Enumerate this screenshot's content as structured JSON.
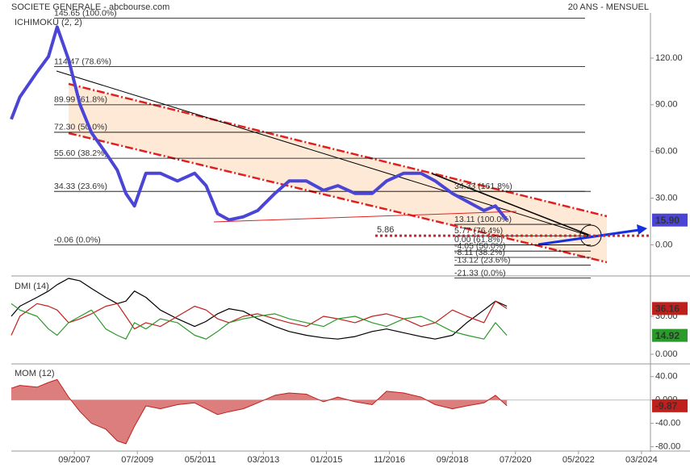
{
  "chart_data": [
    {
      "type": "line",
      "title": "SOCIETE GENERALE - abcbourse.com",
      "subtitle": "20 ANS - MENSUEL",
      "label": "ICHIMOKU (2, 2)",
      "label_color": "#1f5fbf",
      "x": [
        "11/2005",
        "02/2006",
        "08/2006",
        "12/2006",
        "03/2007",
        "07/2007",
        "11/2007",
        "03/2008",
        "08/2008",
        "12/2008",
        "03/2009",
        "06/2009",
        "10/2009",
        "03/2010",
        "09/2010",
        "03/2011",
        "07/2011",
        "11/2011",
        "03/2012",
        "08/2012",
        "01/2013",
        "07/2013",
        "12/2013",
        "06/2014",
        "12/2014",
        "05/2015",
        "11/2015",
        "05/2016",
        "10/2016",
        "04/2017",
        "10/2017",
        "03/2018",
        "09/2018",
        "02/2019",
        "08/2019",
        "12/2019",
        "04/2020"
      ],
      "xlim": [
        "11/2005",
        "05/2024"
      ],
      "series": [
        {
          "name": "SOCIETE GENERALE",
          "color": "#4b45d6",
          "width": 4,
          "values": [
            80.7,
            95,
            111,
            121,
            140,
            119,
            90,
            72,
            59,
            48,
            33,
            25,
            46,
            46,
            41,
            46,
            38,
            20,
            16,
            18,
            22,
            33,
            41,
            41,
            35,
            38,
            33,
            33,
            41,
            46,
            46,
            41,
            33,
            28,
            22,
            25,
            15.9
          ],
          "badge": {
            "value": 15.9,
            "label": "15.90"
          }
        }
      ],
      "ylim": [
        -19,
        148
      ],
      "yticks": [
        {
          "value": 0,
          "label": "0.00"
        },
        {
          "value": 30,
          "label": "30.00"
        },
        {
          "value": 60,
          "label": "60.00"
        },
        {
          "value": 90,
          "label": "90.00"
        },
        {
          "value": 120,
          "label": "120.00"
        }
      ],
      "fibonacci": [
        [
          {
            "value": 145.65,
            "label": "145.65 (100.0%)"
          },
          {
            "value": 114.47,
            "label": "114.47 (78.6%)"
          },
          {
            "value": 89.99,
            "label": "89.99 (61.8%)"
          },
          {
            "value": 72.3,
            "label": "72.30 (50.0%)"
          },
          {
            "value": 55.6,
            "label": "55.60 (38.2%)"
          },
          {
            "value": 34.33,
            "label": "34.33 (23.6%)"
          },
          {
            "value": -0.06,
            "label": "-0.06 (0.0%)"
          }
        ],
        [
          {
            "value": 34.33,
            "label": "34.33 (161.8%)"
          },
          {
            "value": 13.11,
            "label": "13.11 (100.0%)"
          },
          {
            "value": 5.77,
            "label": "5.77 (76.4%)"
          },
          {
            "value": 0,
            "label": "0.00 (61.8%)"
          },
          {
            "value": -4.05,
            "label": "-4.05 (50.0%)"
          },
          {
            "value": -8.11,
            "label": "-8.11 (38.2%)"
          },
          {
            "value": -13.12,
            "label": "-13.12 (23.6%)"
          },
          {
            "value": -21.33,
            "label": "-21.33 (0.0%)"
          }
        ]
      ],
      "annotations": [
        {
          "value": 5.86,
          "label": "5.86",
          "color": "#e02020"
        }
      ]
    },
    {
      "type": "line",
      "label": "DMI (14)",
      "label_color": "#000000",
      "x": [
        "11/2005",
        "02/2006",
        "08/2006",
        "12/2006",
        "03/2007",
        "07/2007",
        "11/2007",
        "03/2008",
        "08/2008",
        "12/2008",
        "03/2009",
        "06/2009",
        "10/2009",
        "03/2010",
        "09/2010",
        "03/2011",
        "07/2011",
        "11/2011",
        "03/2012",
        "08/2012",
        "01/2013",
        "07/2013",
        "12/2013",
        "06/2014",
        "12/2014",
        "05/2015",
        "11/2015",
        "05/2016",
        "10/2016",
        "04/2017",
        "10/2017",
        "03/2018",
        "09/2018",
        "02/2019",
        "08/2019",
        "12/2019",
        "04/2020"
      ],
      "xlim": [
        "11/2005",
        "05/2024"
      ],
      "series": [
        {
          "name": "ADX",
          "color": "#000000",
          "width": 1.2,
          "values": [
            30,
            38,
            45,
            50,
            55,
            60,
            58,
            52,
            45,
            40,
            42,
            50,
            45,
            35,
            28,
            22,
            26,
            32,
            36,
            34,
            28,
            22,
            18,
            15,
            13,
            12,
            14,
            18,
            20,
            17,
            14,
            12,
            15,
            25,
            35,
            42,
            38
          ]
        },
        {
          "name": "DI+",
          "color": "#c0201c",
          "width": 1.2,
          "values": [
            15,
            30,
            40,
            38,
            35,
            25,
            28,
            32,
            38,
            40,
            30,
            20,
            25,
            22,
            30,
            38,
            35,
            28,
            25,
            30,
            32,
            28,
            25,
            22,
            30,
            28,
            25,
            30,
            32,
            28,
            22,
            25,
            35,
            30,
            25,
            42,
            36.16
          ],
          "badge": {
            "value": 36.16,
            "label": "36.16"
          }
        },
        {
          "name": "DI-",
          "color": "#2a9a2a",
          "width": 1.2,
          "values": [
            40,
            35,
            30,
            20,
            15,
            25,
            30,
            35,
            20,
            15,
            12,
            25,
            20,
            28,
            25,
            15,
            12,
            18,
            25,
            28,
            30,
            32,
            28,
            25,
            22,
            28,
            30,
            25,
            22,
            28,
            30,
            25,
            18,
            15,
            12,
            25,
            14.92
          ],
          "badge": {
            "value": 14.92,
            "label": "14.92"
          }
        }
      ],
      "ylim": [
        -7,
        60
      ],
      "yticks": [
        {
          "value": 0,
          "label": "0.000"
        },
        {
          "value": 30,
          "label": "30.00"
        }
      ]
    },
    {
      "type": "area",
      "label": "MOM (12)",
      "label_color": "#c0201c",
      "x": [
        "11/2005",
        "02/2006",
        "08/2006",
        "12/2006",
        "03/2007",
        "07/2007",
        "11/2007",
        "03/2008",
        "08/2008",
        "12/2008",
        "03/2009",
        "06/2009",
        "10/2009",
        "03/2010",
        "09/2010",
        "03/2011",
        "07/2011",
        "11/2011",
        "03/2012",
        "08/2012",
        "01/2013",
        "07/2013",
        "12/2013",
        "06/2014",
        "12/2014",
        "05/2015",
        "11/2015",
        "05/2016",
        "10/2016",
        "04/2017",
        "10/2017",
        "03/2018",
        "09/2018",
        "02/2019",
        "08/2019",
        "12/2019",
        "04/2020"
      ],
      "xlim": [
        "11/2005",
        "05/2024"
      ],
      "series": [
        {
          "name": "MOM",
          "color": "#c0201c",
          "fill": "#d97070",
          "width": 1,
          "values": [
            20,
            25,
            22,
            30,
            35,
            5,
            -20,
            -40,
            -50,
            -70,
            -75,
            -45,
            -10,
            -15,
            -8,
            -5,
            -15,
            -25,
            -20,
            -15,
            -5,
            8,
            12,
            10,
            -3,
            5,
            -3,
            -8,
            15,
            12,
            5,
            -8,
            -15,
            -10,
            -5,
            8,
            -9.87
          ],
          "badge": {
            "value": -9.87,
            "label": "-9.87"
          }
        }
      ],
      "ylim": [
        -86,
        59
      ],
      "yticks": [
        {
          "value": 40,
          "label": "40.00"
        },
        {
          "value": 0,
          "label": "0.000"
        },
        {
          "value": -40,
          "label": "-40.00"
        },
        {
          "value": -80,
          "label": "-80.00"
        }
      ],
      "xticks": [
        "09/2007",
        "07/2009",
        "05/2011",
        "03/2013",
        "01/2015",
        "11/2016",
        "09/2018",
        "07/2020",
        "05/2022",
        "03/2024"
      ]
    }
  ]
}
